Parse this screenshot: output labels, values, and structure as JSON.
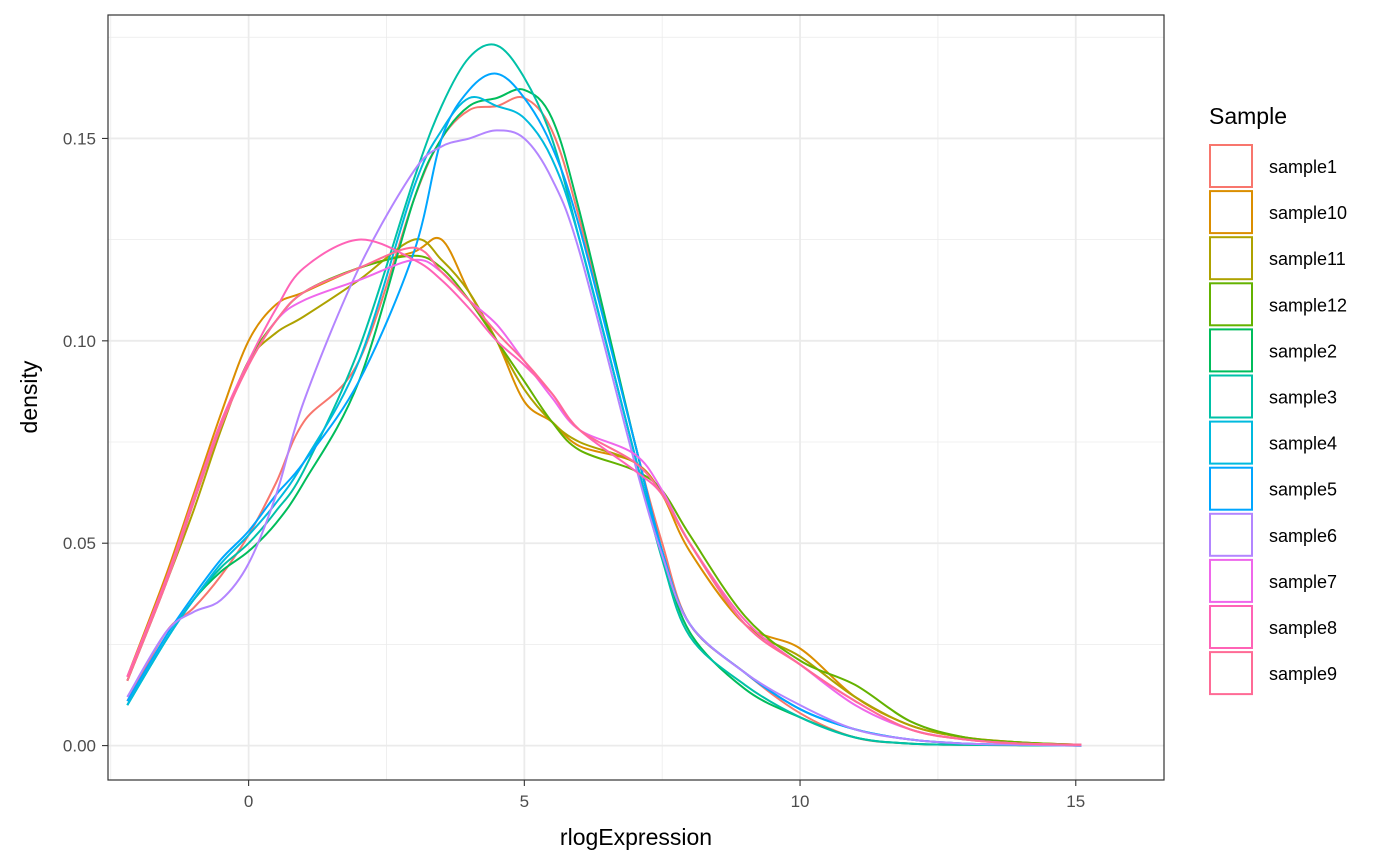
{
  "chart_data": {
    "type": "line",
    "xlabel": "rlogExpression",
    "ylabel": "density",
    "xlim": [
      -2.55,
      16.6
    ],
    "ylim": [
      -0.0085,
      0.1805
    ],
    "x_ticks": [
      0,
      5,
      10,
      15
    ],
    "x_tick_labels": [
      "0",
      "5",
      "10",
      "15"
    ],
    "y_ticks": [
      0.0,
      0.05,
      0.1,
      0.15
    ],
    "y_tick_labels": [
      "0.00",
      "0.05",
      "0.10",
      "0.15"
    ],
    "grid": true,
    "legend": {
      "title": "Sample",
      "placement": "right"
    },
    "series": [
      {
        "name": "sample1",
        "color": "#F8766D",
        "x": [
          -2.2,
          -1.5,
          -1,
          -0.5,
          0,
          0.5,
          1,
          2,
          3,
          3.5,
          4,
          4.5,
          5,
          5.5,
          6,
          7,
          7.5,
          8,
          9,
          10,
          11,
          12,
          13,
          14,
          15.1
        ],
        "y": [
          0.011,
          0.028,
          0.034,
          0.042,
          0.052,
          0.065,
          0.08,
          0.095,
          0.135,
          0.15,
          0.157,
          0.158,
          0.16,
          0.152,
          0.13,
          0.075,
          0.05,
          0.03,
          0.018,
          0.008,
          0.002,
          0.0005,
          0.0002,
          0.0001,
          0.0
        ]
      },
      {
        "name": "sample10",
        "color": "#DB8E00",
        "x": [
          -2.2,
          -1.5,
          -1,
          -0.5,
          0,
          0.5,
          1,
          2,
          3,
          3.5,
          4,
          4.5,
          5,
          5.5,
          6,
          7,
          7.5,
          8,
          9,
          10,
          11,
          12,
          13,
          14,
          15.1
        ],
        "y": [
          0.017,
          0.042,
          0.062,
          0.082,
          0.1,
          0.109,
          0.112,
          0.118,
          0.122,
          0.125,
          0.112,
          0.1,
          0.085,
          0.08,
          0.074,
          0.07,
          0.062,
          0.048,
          0.03,
          0.024,
          0.012,
          0.005,
          0.002,
          0.0008,
          0.0002
        ]
      },
      {
        "name": "sample11",
        "color": "#AEA200",
        "x": [
          -2.2,
          -1.5,
          -1,
          -0.5,
          0,
          0.5,
          1,
          2,
          3,
          3.5,
          4,
          4.5,
          5,
          5.5,
          6,
          7,
          7.5,
          8,
          9,
          10,
          11,
          12,
          13,
          14,
          15.1
        ],
        "y": [
          0.016,
          0.04,
          0.058,
          0.078,
          0.095,
          0.102,
          0.106,
          0.115,
          0.125,
          0.12,
          0.112,
          0.1,
          0.088,
          0.08,
          0.075,
          0.07,
          0.062,
          0.05,
          0.03,
          0.022,
          0.012,
          0.005,
          0.002,
          0.0008,
          0.0002
        ]
      },
      {
        "name": "sample12",
        "color": "#64B200",
        "x": [
          -2.2,
          -1.5,
          -1,
          -0.5,
          0,
          0.5,
          1,
          2,
          3,
          3.5,
          4,
          4.5,
          5,
          5.5,
          6,
          7,
          7.5,
          8,
          9,
          10,
          11,
          12,
          13,
          14,
          15.1
        ],
        "y": [
          0.016,
          0.04,
          0.06,
          0.079,
          0.095,
          0.105,
          0.112,
          0.118,
          0.121,
          0.118,
          0.11,
          0.1,
          0.09,
          0.08,
          0.073,
          0.068,
          0.063,
          0.052,
          0.032,
          0.021,
          0.015,
          0.006,
          0.002,
          0.0008,
          0.0002
        ]
      },
      {
        "name": "sample2",
        "color": "#00BD5C",
        "x": [
          -2.2,
          -1.5,
          -1,
          -0.5,
          0,
          0.5,
          1,
          2,
          3,
          3.5,
          4,
          4.5,
          5,
          5.5,
          6,
          7,
          7.5,
          8,
          9,
          10,
          11,
          12,
          13,
          14,
          15.1
        ],
        "y": [
          0.01,
          0.026,
          0.036,
          0.043,
          0.048,
          0.055,
          0.065,
          0.09,
          0.135,
          0.15,
          0.158,
          0.16,
          0.162,
          0.155,
          0.132,
          0.075,
          0.048,
          0.028,
          0.014,
          0.007,
          0.002,
          0.0005,
          0.0002,
          0.0001,
          0.0
        ]
      },
      {
        "name": "sample3",
        "color": "#00C1A7",
        "x": [
          -2.2,
          -1.5,
          -1,
          -0.5,
          0,
          0.5,
          1,
          2,
          3,
          3.5,
          4,
          4.5,
          5,
          5.5,
          6,
          7,
          7.5,
          8,
          9,
          10,
          11,
          12,
          13,
          14,
          15.1
        ],
        "y": [
          0.01,
          0.026,
          0.036,
          0.044,
          0.05,
          0.058,
          0.068,
          0.098,
          0.14,
          0.158,
          0.17,
          0.173,
          0.165,
          0.15,
          0.125,
          0.072,
          0.046,
          0.027,
          0.015,
          0.007,
          0.002,
          0.0005,
          0.0002,
          0.0001,
          0.0
        ]
      },
      {
        "name": "sample4",
        "color": "#00BADE",
        "x": [
          -2.2,
          -1.5,
          -1,
          -0.5,
          0,
          0.5,
          1,
          2,
          3,
          3.5,
          4,
          4.5,
          5,
          5.5,
          6,
          7,
          7.5,
          8,
          9,
          10,
          11,
          12,
          13,
          14,
          15.1
        ],
        "y": [
          0.01,
          0.026,
          0.036,
          0.045,
          0.052,
          0.06,
          0.07,
          0.095,
          0.138,
          0.152,
          0.16,
          0.158,
          0.155,
          0.145,
          0.125,
          0.072,
          0.048,
          0.03,
          0.018,
          0.009,
          0.004,
          0.0015,
          0.0005,
          0.0002,
          0.0
        ]
      },
      {
        "name": "sample5",
        "color": "#00A6FF",
        "x": [
          -2.2,
          -1.5,
          -1,
          -0.5,
          0,
          0.5,
          1,
          2,
          3,
          3.5,
          4,
          4.5,
          5,
          5.5,
          6,
          7,
          7.5,
          8,
          9,
          10,
          11,
          12,
          13,
          14,
          15.1
        ],
        "y": [
          0.011,
          0.027,
          0.037,
          0.046,
          0.053,
          0.062,
          0.07,
          0.09,
          0.122,
          0.15,
          0.162,
          0.166,
          0.16,
          0.148,
          0.128,
          0.075,
          0.048,
          0.03,
          0.018,
          0.009,
          0.004,
          0.0015,
          0.0005,
          0.0002,
          0.0
        ]
      },
      {
        "name": "sample6",
        "color": "#B385FF",
        "x": [
          -2.2,
          -1.5,
          -1,
          -0.5,
          0,
          0.5,
          1,
          2,
          3,
          3.5,
          4,
          4.5,
          5,
          5.5,
          6,
          7,
          7.5,
          8,
          9,
          10,
          11,
          12,
          13,
          14,
          15.1
        ],
        "y": [
          0.012,
          0.028,
          0.033,
          0.036,
          0.045,
          0.062,
          0.085,
          0.118,
          0.142,
          0.148,
          0.15,
          0.152,
          0.15,
          0.14,
          0.122,
          0.07,
          0.047,
          0.03,
          0.018,
          0.01,
          0.004,
          0.0015,
          0.0005,
          0.0002,
          0.0
        ]
      },
      {
        "name": "sample7",
        "color": "#EF67EB",
        "x": [
          -2.2,
          -1.5,
          -1,
          -0.5,
          0,
          0.5,
          1,
          2,
          3,
          3.5,
          4,
          4.5,
          5,
          5.5,
          6,
          7,
          7.5,
          8,
          9,
          10,
          11,
          12,
          13,
          14,
          15.1
        ],
        "y": [
          0.017,
          0.04,
          0.06,
          0.079,
          0.094,
          0.105,
          0.11,
          0.115,
          0.12,
          0.117,
          0.11,
          0.104,
          0.095,
          0.086,
          0.078,
          0.072,
          0.063,
          0.05,
          0.03,
          0.02,
          0.01,
          0.004,
          0.0015,
          0.0005,
          0.0002
        ]
      },
      {
        "name": "sample8",
        "color": "#FF63B6",
        "x": [
          -2.2,
          -1.5,
          -1,
          -0.5,
          0,
          0.5,
          1,
          2,
          3,
          3.5,
          4,
          4.5,
          5,
          5.5,
          6,
          7,
          7.5,
          8,
          9,
          10,
          11,
          12,
          13,
          14,
          15.1
        ],
        "y": [
          0.017,
          0.041,
          0.061,
          0.08,
          0.095,
          0.108,
          0.118,
          0.125,
          0.12,
          0.115,
          0.108,
          0.1,
          0.094,
          0.087,
          0.078,
          0.068,
          0.062,
          0.05,
          0.031,
          0.02,
          0.011,
          0.004,
          0.0015,
          0.0005,
          0.0002
        ]
      },
      {
        "name": "sample9",
        "color": "#FF6B96",
        "x": [
          -2.2,
          -1.5,
          -1,
          -0.5,
          0,
          0.5,
          1,
          2,
          3,
          3.5,
          4,
          4.5,
          5,
          5.5,
          6,
          7,
          7.5,
          8,
          9,
          10,
          11,
          12,
          13,
          14,
          15.1
        ],
        "y": [
          0.016,
          0.04,
          0.06,
          0.079,
          0.094,
          0.105,
          0.112,
          0.118,
          0.123,
          0.117,
          0.11,
          0.102,
          0.095,
          0.087,
          0.078,
          0.07,
          0.062,
          0.05,
          0.03,
          0.02,
          0.011,
          0.004,
          0.0015,
          0.0005,
          0.0002
        ]
      }
    ]
  }
}
